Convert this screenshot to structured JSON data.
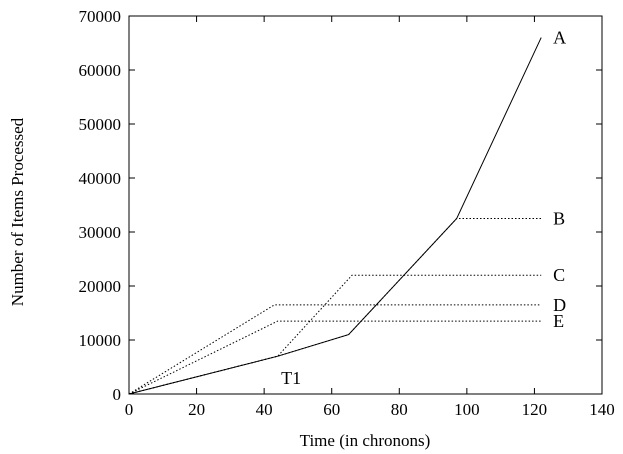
{
  "chart_data": {
    "type": "line",
    "title": "",
    "xlabel": "Time (in chronons)",
    "ylabel": "Number of Items Processed",
    "xlim": [
      0,
      140
    ],
    "ylim": [
      0,
      70000
    ],
    "xticks": [
      0,
      20,
      40,
      60,
      80,
      100,
      120,
      140
    ],
    "yticks": [
      0,
      10000,
      20000,
      30000,
      40000,
      50000,
      60000,
      70000
    ],
    "grid": false,
    "legend": "none",
    "series": [
      {
        "name": "A",
        "style": "solid",
        "color": "#000000",
        "points": [
          [
            0,
            0
          ],
          [
            44,
            7000
          ],
          [
            65,
            11000
          ],
          [
            97,
            32500
          ],
          [
            122,
            66000
          ]
        ]
      },
      {
        "name": "B",
        "style": "dotted",
        "color": "#000000",
        "points": [
          [
            0,
            0
          ],
          [
            44,
            7000
          ],
          [
            65,
            11000
          ],
          [
            97,
            32500
          ],
          [
            122,
            32500
          ]
        ]
      },
      {
        "name": "C",
        "style": "dotted",
        "color": "#000000",
        "points": [
          [
            0,
            0
          ],
          [
            44,
            7000
          ],
          [
            66,
            22000
          ],
          [
            122,
            22000
          ]
        ]
      },
      {
        "name": "D",
        "style": "dotted",
        "color": "#000000",
        "points": [
          [
            0,
            0
          ],
          [
            43,
            16500
          ],
          [
            122,
            16500
          ]
        ]
      },
      {
        "name": "E",
        "style": "dotted",
        "color": "#000000",
        "points": [
          [
            0,
            0
          ],
          [
            44,
            13500
          ],
          [
            122,
            13500
          ]
        ]
      }
    ],
    "annotations": [
      {
        "text": "T1",
        "x": 48,
        "y": 3000
      }
    ]
  }
}
